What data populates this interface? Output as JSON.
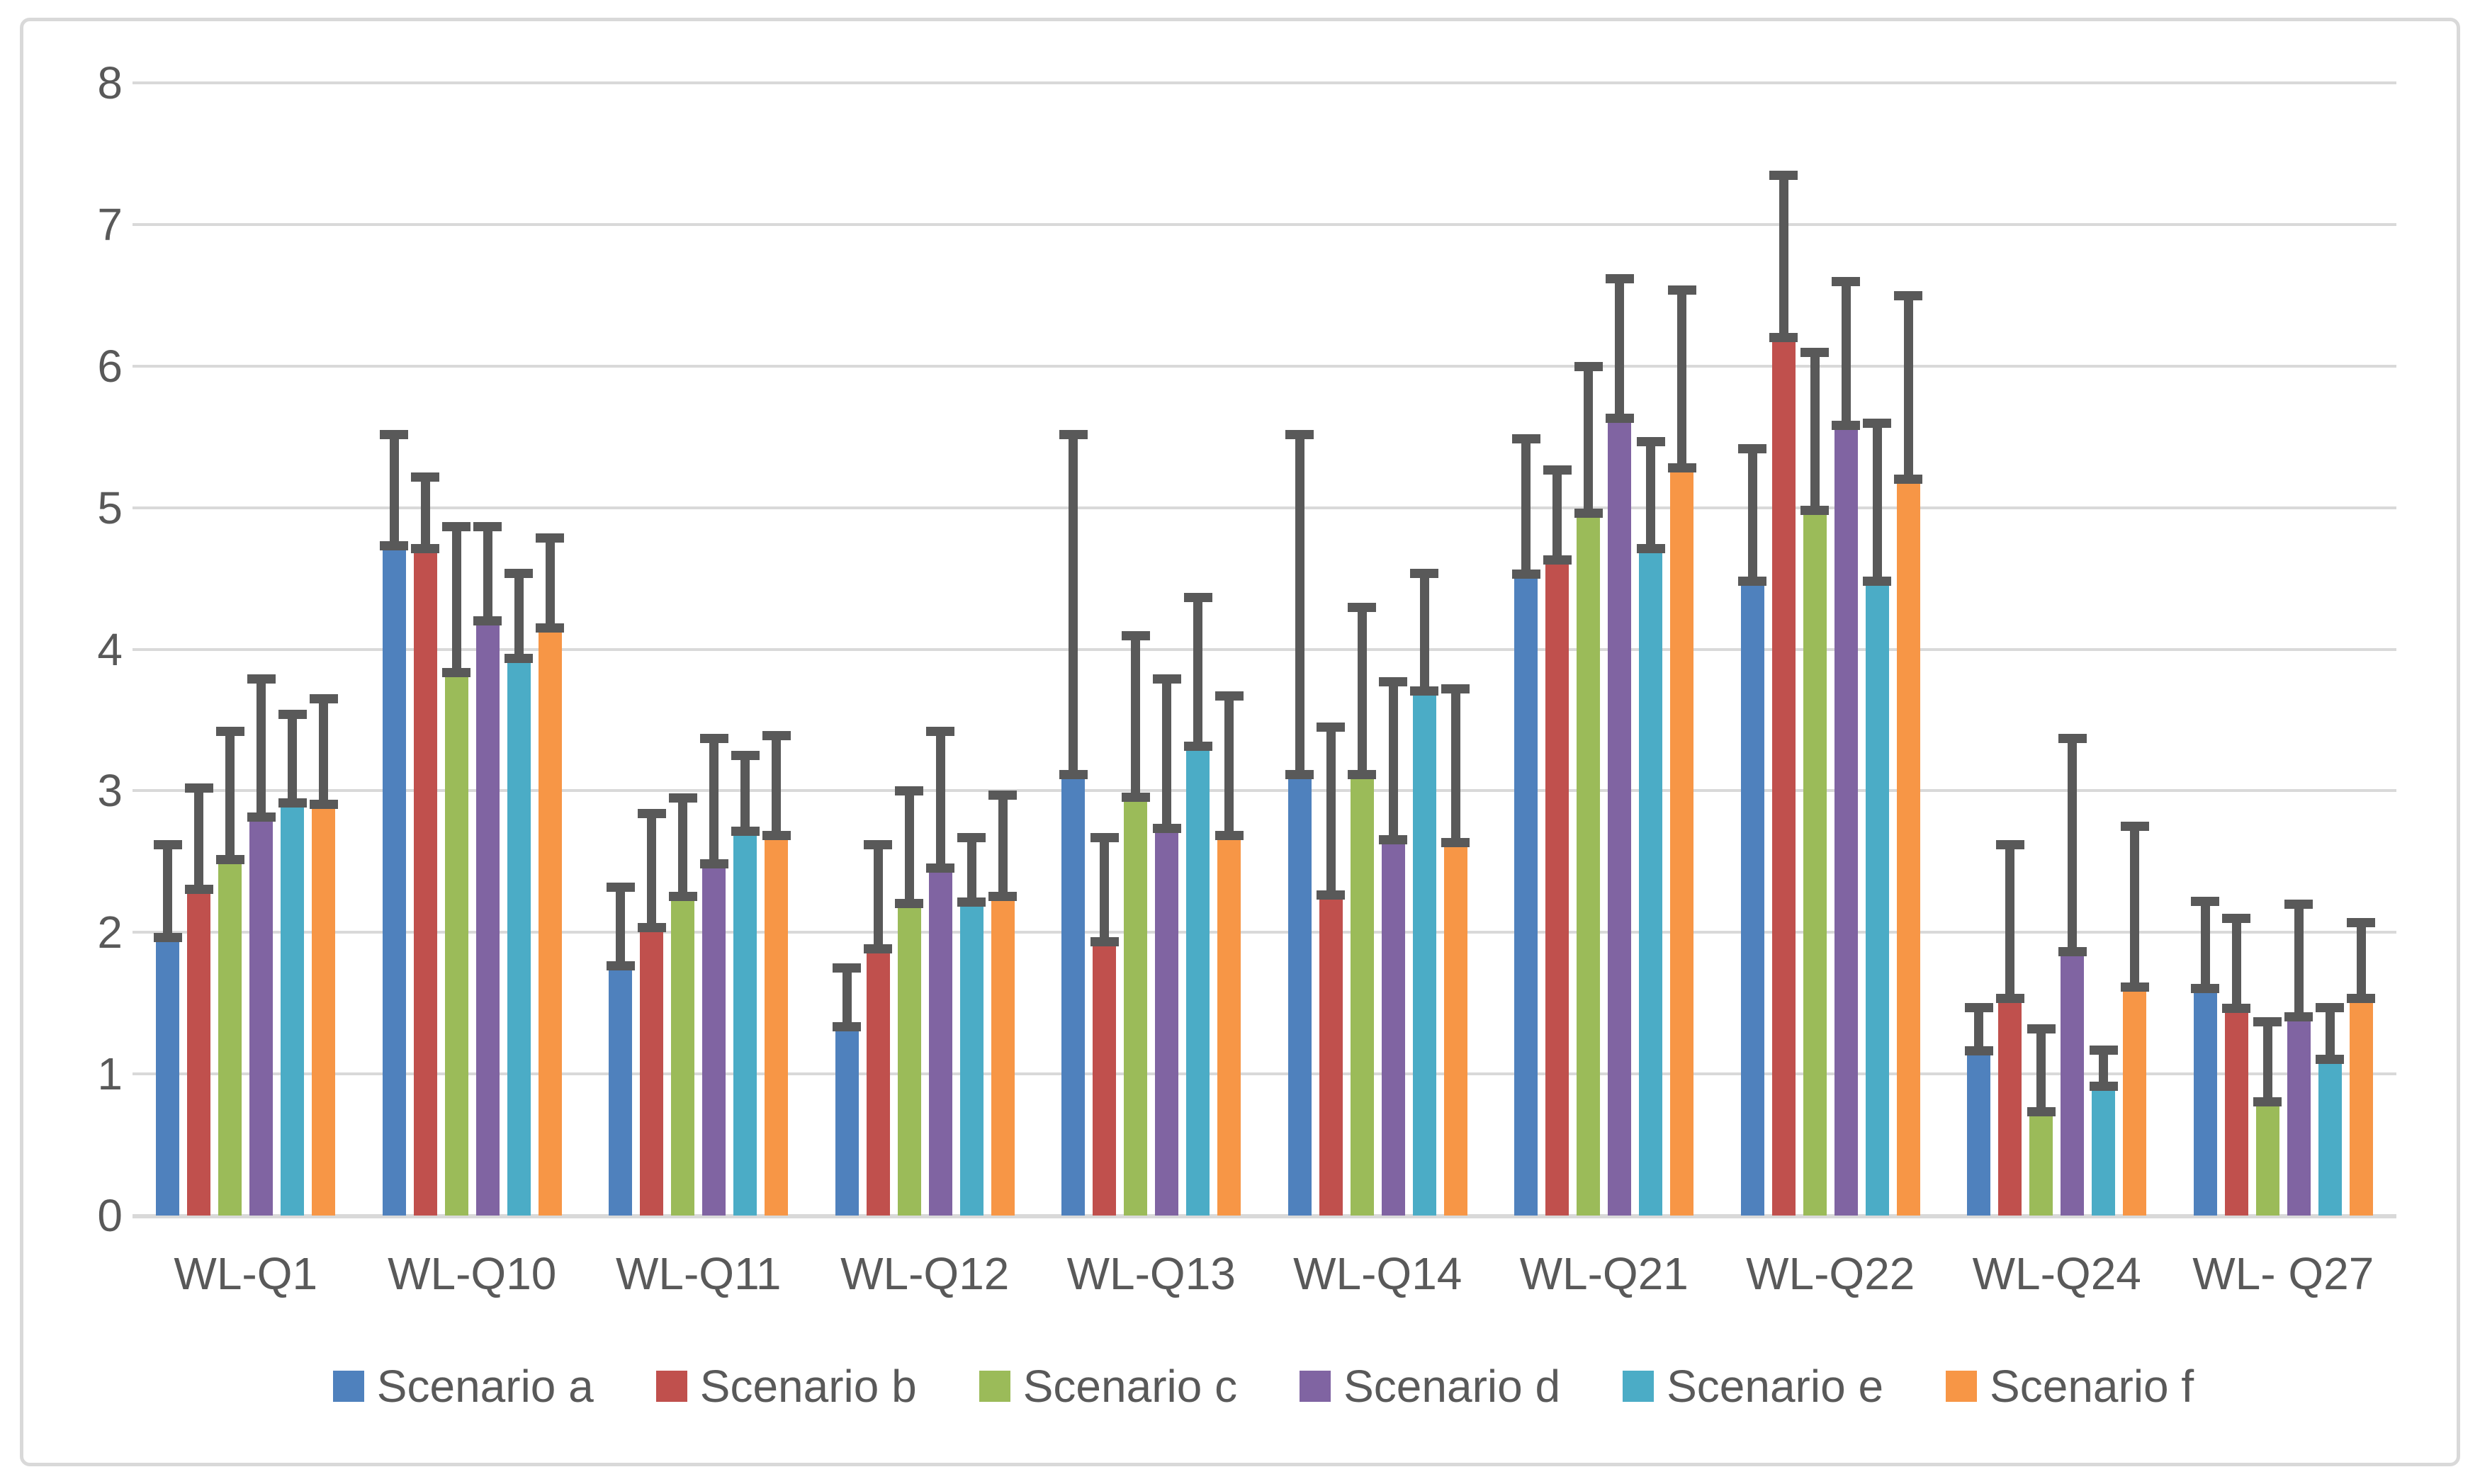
{
  "chart_data": {
    "type": "bar",
    "title": "",
    "xlabel": "",
    "ylabel": "",
    "categories": [
      "WL-Q1",
      "WL-Q10",
      "WL-Q11",
      "WL-Q12",
      "WL-Q13",
      "WL-Q14",
      "WL-Q21",
      "WL-Q22",
      "WL-Q24",
      "WL- Q27"
    ],
    "yticks": [
      "0",
      "1",
      "2",
      "3",
      "4",
      "5",
      "6",
      "7",
      "8"
    ],
    "ylim": [
      0,
      8
    ],
    "grid": "horizontal",
    "legend_position": "bottom",
    "error_bars": "upper-only, capped both ends",
    "series": [
      {
        "name": "Scenario a",
        "color": "#4F81BD",
        "values": [
          1.93,
          4.7,
          1.73,
          1.3,
          3.08,
          3.08,
          4.5,
          4.45,
          1.13,
          1.57
        ],
        "error_tops": [
          2.65,
          5.55,
          2.35,
          1.78,
          5.55,
          5.55,
          5.52,
          5.45,
          1.5,
          2.25
        ]
      },
      {
        "name": "Scenario b",
        "color": "#C0504D",
        "values": [
          2.27,
          4.68,
          2.0,
          1.85,
          1.9,
          2.23,
          4.6,
          6.17,
          1.5,
          1.43
        ],
        "error_tops": [
          3.05,
          5.25,
          2.87,
          2.65,
          2.7,
          3.48,
          5.3,
          7.38,
          2.65,
          2.13
        ]
      },
      {
        "name": "Scenario c",
        "color": "#9BBB59",
        "values": [
          2.48,
          3.8,
          2.22,
          2.17,
          2.92,
          3.08,
          4.93,
          4.95,
          0.7,
          0.77
        ],
        "error_tops": [
          3.45,
          4.9,
          2.98,
          3.03,
          4.13,
          4.33,
          6.03,
          6.13,
          1.35,
          1.4
        ]
      },
      {
        "name": "Scenario d",
        "color": "#8064A2",
        "values": [
          2.78,
          4.17,
          2.45,
          2.42,
          2.7,
          2.62,
          5.6,
          5.55,
          1.83,
          1.37
        ],
        "error_tops": [
          3.82,
          4.9,
          3.4,
          3.45,
          3.82,
          3.8,
          6.65,
          6.63,
          3.4,
          2.23
        ]
      },
      {
        "name": "Scenario e",
        "color": "#4BACC6",
        "values": [
          2.88,
          3.9,
          2.68,
          2.18,
          3.28,
          3.67,
          4.68,
          4.45,
          0.88,
          1.07
        ],
        "error_tops": [
          3.57,
          4.57,
          3.28,
          2.7,
          4.4,
          4.57,
          5.5,
          5.63,
          1.2,
          1.5
        ]
      },
      {
        "name": "Scenario f",
        "color": "#F79646",
        "values": [
          2.87,
          4.12,
          2.65,
          2.22,
          2.65,
          2.6,
          5.25,
          5.17,
          1.58,
          1.5
        ],
        "error_tops": [
          3.68,
          4.82,
          3.42,
          3.0,
          3.7,
          3.75,
          6.57,
          6.53,
          2.78,
          2.1
        ]
      }
    ],
    "colors": {
      "gridline": "#D9D9D9",
      "frame_border": "#D9D9D9",
      "error_bar": "#595959",
      "axis_text": "#595959",
      "background": "#FFFFFF"
    }
  }
}
